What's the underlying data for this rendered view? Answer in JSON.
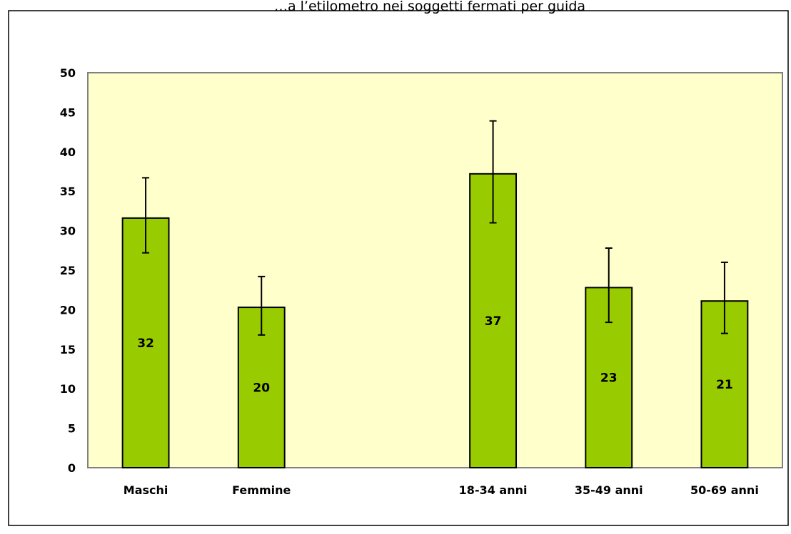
{
  "chart_data": {
    "type": "bar",
    "title": "…a l’etilometro nei soggetti fermati per guida",
    "categories": [
      "Maschi",
      "Femmine",
      "",
      "18-34 anni",
      "35-49 anni",
      "50-69 anni"
    ],
    "values": [
      31.6,
      20.3,
      null,
      37.2,
      22.8,
      21.1
    ],
    "data_labels": [
      "32",
      "20",
      "",
      "37",
      "23",
      "21"
    ],
    "error_low": [
      27.2,
      16.8,
      null,
      31.0,
      18.4,
      17.0
    ],
    "error_high": [
      36.7,
      24.2,
      null,
      43.9,
      27.8,
      26.0
    ],
    "ylim": [
      0,
      50
    ],
    "yticks": [
      "0",
      "5",
      "10",
      "15",
      "20",
      "25",
      "30",
      "35",
      "40",
      "45",
      "50"
    ],
    "grid": false,
    "legend": "none",
    "colors": {
      "bar_fill": "#99cc00",
      "bar_stroke": "#000000",
      "plot_background": "#ffffcc",
      "plot_border": "#808080",
      "frame_border": "#000000"
    }
  }
}
